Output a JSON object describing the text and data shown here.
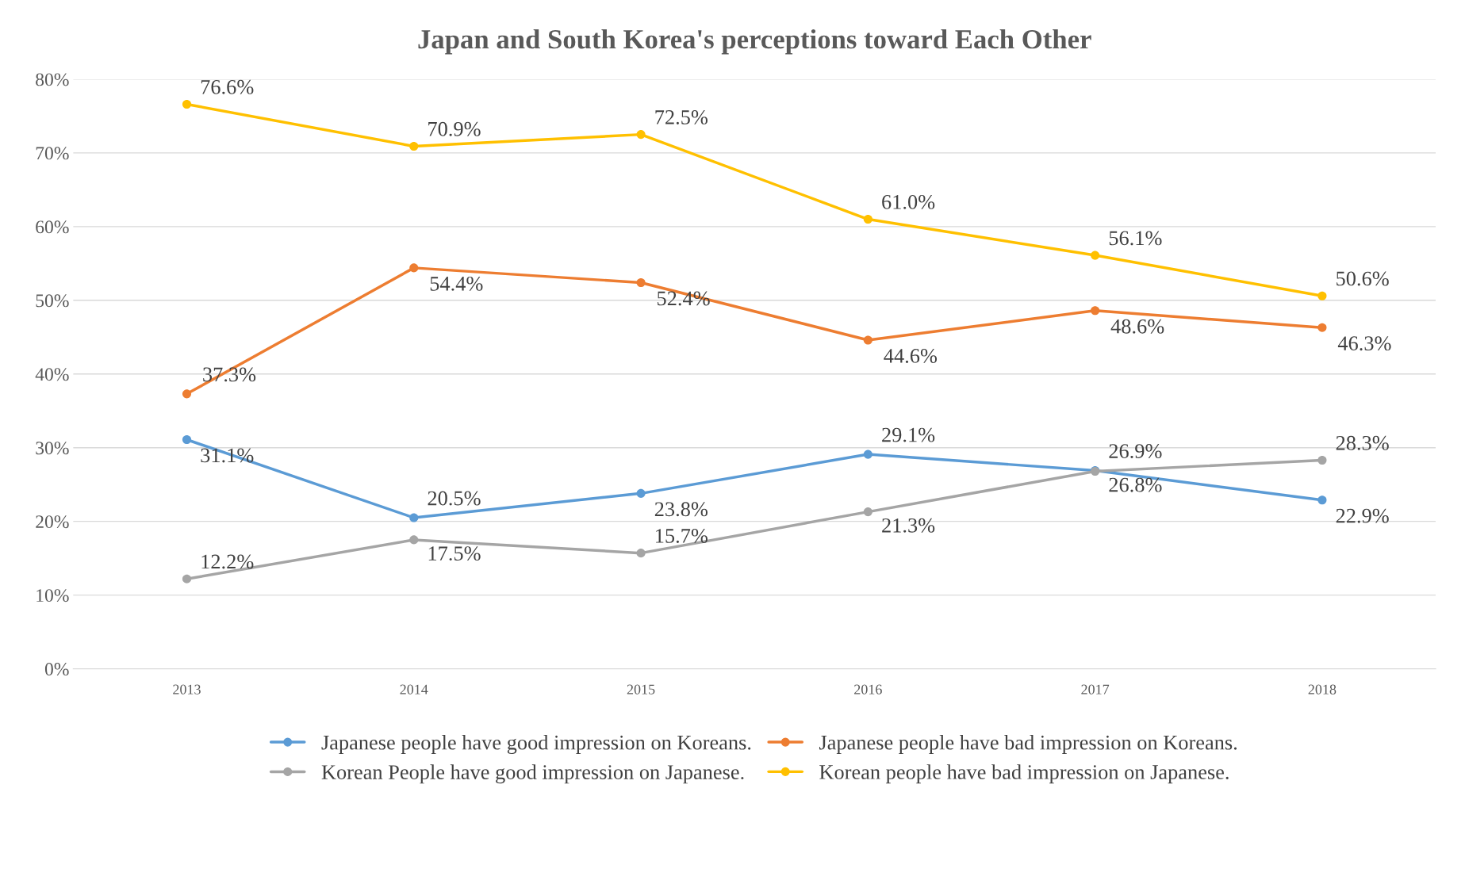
{
  "chart_data": {
    "type": "line",
    "title": "Japan and South Korea's perceptions toward Each Other",
    "categories": [
      "2013",
      "2014",
      "2015",
      "2016",
      "2017",
      "2018"
    ],
    "series": [
      {
        "name": "Japanese people have good impression on Koreans.",
        "color": "#5b9bd5",
        "values": [
          31.1,
          20.5,
          23.8,
          29.1,
          26.9,
          22.9
        ],
        "value_labels": [
          "31.1%",
          "20.5%",
          "23.8%",
          "29.1%",
          "26.9%",
          "22.9%"
        ]
      },
      {
        "name": "Japanese people have bad impression on Koreans.",
        "color": "#ed7d31",
        "values": [
          37.3,
          54.4,
          52.4,
          44.6,
          48.6,
          46.3
        ],
        "value_labels": [
          "37.3%",
          "54.4%",
          "52.4%",
          "44.6%",
          "48.6%",
          "46.3%"
        ]
      },
      {
        "name": "Korean People have good impression on Japanese.",
        "color": "#a5a5a5",
        "values": [
          12.2,
          17.5,
          15.7,
          21.3,
          26.8,
          28.3
        ],
        "value_labels": [
          "12.2%",
          "17.5%",
          "15.7%",
          "21.3%",
          "26.8%",
          "28.3%"
        ]
      },
      {
        "name": "Korean people have bad impression on Japanese.",
        "color": "#ffc000",
        "values": [
          76.6,
          70.9,
          72.5,
          61.0,
          56.1,
          50.6
        ],
        "value_labels": [
          "76.6%",
          "70.9%",
          "72.5%",
          "61.0%",
          "56.1%",
          "50.6%"
        ]
      }
    ],
    "ylim": [
      0,
      80
    ],
    "yticks": [
      {
        "value": 0,
        "label": "0%"
      },
      {
        "value": 10,
        "label": "10%"
      },
      {
        "value": 20,
        "label": "20%"
      },
      {
        "value": 30,
        "label": "30%"
      },
      {
        "value": 40,
        "label": "40%"
      },
      {
        "value": 50,
        "label": "50%"
      },
      {
        "value": 60,
        "label": "60%"
      },
      {
        "value": 70,
        "label": "70%"
      },
      {
        "value": 80,
        "label": "80%"
      }
    ],
    "grid": "y",
    "legend": "bottom",
    "marker": "circle",
    "line_style": "solid"
  }
}
